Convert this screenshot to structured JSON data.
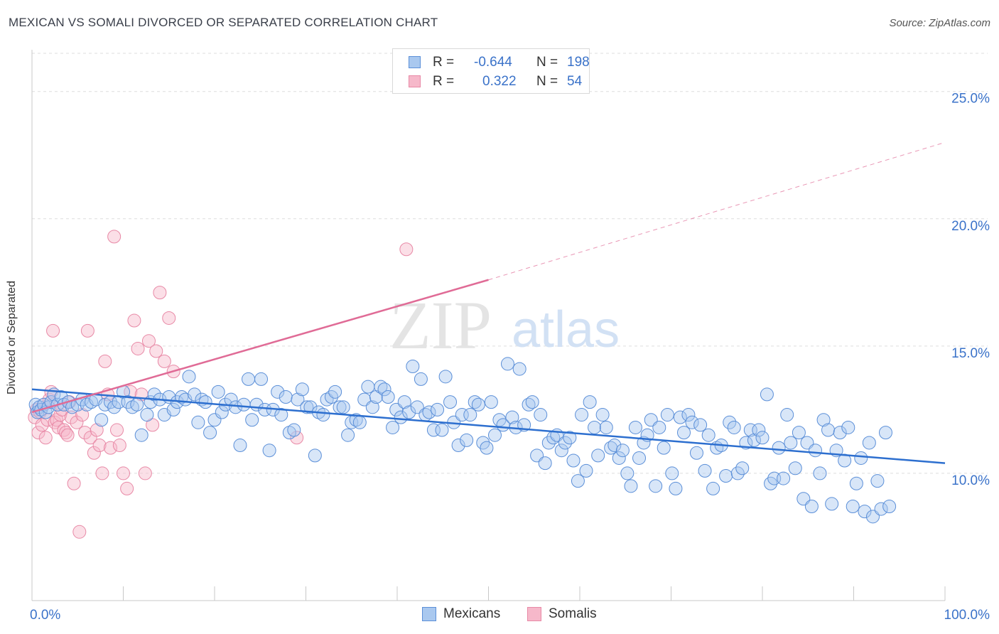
{
  "title": "MEXICAN VS SOMALI DIVORCED OR SEPARATED CORRELATION CHART",
  "source": "Source: ZipAtlas.com",
  "watermark": {
    "zip": "ZIP",
    "atlas": "atlas"
  },
  "legend": {
    "rows": [
      {
        "r_label": "R =",
        "r_value": "-0.644",
        "n_label": "N =",
        "n_value": "198"
      },
      {
        "r_label": "R =",
        "r_value": "0.322",
        "n_label": "N =",
        "n_value": "54"
      }
    ]
  },
  "colors": {
    "mexicans_fill": "#a9c8ef",
    "mexicans_stroke": "#5b8fd8",
    "mexicans_line": "#2d6fcf",
    "somalis_fill": "#f6b8ca",
    "somalis_stroke": "#e889a6",
    "somalis_line": "#e06b96",
    "tick_label": "#3a72c9",
    "grid": "#dddddd"
  },
  "chart_data": {
    "type": "scatter",
    "title": "MEXICAN VS SOMALI DIVORCED OR SEPARATED CORRELATION CHART",
    "xlabel": "",
    "ylabel": "Divorced or Separated",
    "xlim": [
      0,
      100
    ],
    "ylim": [
      5,
      26.5
    ],
    "x_tick_labels": [
      "0.0%",
      "100.0%"
    ],
    "y_ticks": [
      10,
      15,
      20,
      25
    ],
    "y_tick_labels": [
      "10.0%",
      "15.0%",
      "20.0%",
      "25.0%"
    ],
    "grid": true,
    "legend_position": "top-center",
    "series": [
      {
        "name": "Mexicans",
        "r": -0.644,
        "n": 198,
        "trend": {
          "x": [
            0,
            100
          ],
          "y": [
            13.3,
            10.4
          ]
        },
        "points": [
          [
            0.4,
            12.7
          ],
          [
            0.6,
            12.4
          ],
          [
            0.8,
            12.6
          ],
          [
            1.0,
            12.5
          ],
          [
            1.3,
            12.7
          ],
          [
            1.5,
            12.4
          ],
          [
            1.8,
            12.6
          ],
          [
            2.1,
            12.8
          ],
          [
            2.4,
            13.1
          ],
          [
            2.8,
            12.7
          ],
          [
            3.2,
            13.0
          ],
          [
            3.5,
            12.7
          ],
          [
            4.0,
            12.8
          ],
          [
            4.4,
            12.6
          ],
          [
            5.0,
            12.7
          ],
          [
            5.5,
            12.9
          ],
          [
            6.0,
            12.7
          ],
          [
            6.5,
            12.8
          ],
          [
            7.0,
            12.9
          ],
          [
            7.6,
            12.1
          ],
          [
            8.0,
            12.7
          ],
          [
            8.6,
            12.8
          ],
          [
            9.0,
            12.6
          ],
          [
            9.5,
            12.8
          ],
          [
            10.0,
            13.2
          ],
          [
            10.5,
            12.8
          ],
          [
            11.0,
            12.6
          ],
          [
            11.5,
            12.7
          ],
          [
            12.0,
            11.5
          ],
          [
            12.6,
            12.3
          ],
          [
            13.0,
            12.8
          ],
          [
            13.4,
            13.1
          ],
          [
            14.0,
            12.9
          ],
          [
            14.5,
            12.3
          ],
          [
            15.0,
            13.0
          ],
          [
            15.5,
            12.5
          ],
          [
            15.9,
            12.8
          ],
          [
            16.4,
            13.0
          ],
          [
            16.8,
            12.9
          ],
          [
            17.2,
            13.8
          ],
          [
            17.8,
            13.1
          ],
          [
            18.2,
            12.0
          ],
          [
            18.6,
            12.9
          ],
          [
            19.0,
            12.8
          ],
          [
            19.5,
            11.6
          ],
          [
            20.0,
            12.1
          ],
          [
            20.4,
            13.2
          ],
          [
            20.8,
            12.4
          ],
          [
            21.2,
            12.7
          ],
          [
            21.8,
            12.9
          ],
          [
            22.3,
            12.6
          ],
          [
            22.8,
            11.1
          ],
          [
            23.2,
            12.7
          ],
          [
            23.7,
            13.7
          ],
          [
            24.1,
            12.1
          ],
          [
            24.6,
            12.7
          ],
          [
            25.1,
            13.7
          ],
          [
            25.5,
            12.5
          ],
          [
            26.0,
            10.9
          ],
          [
            26.4,
            12.5
          ],
          [
            26.9,
            13.2
          ],
          [
            27.3,
            12.3
          ],
          [
            27.8,
            13.0
          ],
          [
            28.2,
            11.6
          ],
          [
            28.7,
            11.7
          ],
          [
            29.1,
            12.9
          ],
          [
            29.6,
            13.3
          ],
          [
            30.1,
            12.6
          ],
          [
            30.5,
            12.6
          ],
          [
            31.0,
            10.7
          ],
          [
            31.4,
            12.4
          ],
          [
            31.9,
            12.3
          ],
          [
            32.3,
            12.9
          ],
          [
            32.8,
            13.0
          ],
          [
            33.2,
            13.2
          ],
          [
            33.7,
            12.6
          ],
          [
            34.1,
            12.6
          ],
          [
            34.6,
            11.5
          ],
          [
            35.0,
            12.0
          ],
          [
            35.5,
            12.1
          ],
          [
            35.9,
            12.0
          ],
          [
            36.4,
            12.9
          ],
          [
            36.8,
            13.4
          ],
          [
            37.3,
            12.6
          ],
          [
            37.7,
            13.0
          ],
          [
            38.2,
            13.4
          ],
          [
            38.6,
            13.3
          ],
          [
            39.0,
            13.0
          ],
          [
            39.5,
            11.8
          ],
          [
            39.9,
            12.5
          ],
          [
            40.4,
            12.2
          ],
          [
            40.8,
            12.8
          ],
          [
            41.3,
            12.4
          ],
          [
            41.7,
            14.2
          ],
          [
            42.2,
            12.6
          ],
          [
            42.6,
            13.7
          ],
          [
            43.1,
            12.3
          ],
          [
            43.5,
            12.4
          ],
          [
            44.0,
            11.7
          ],
          [
            44.4,
            12.5
          ],
          [
            44.9,
            11.7
          ],
          [
            45.3,
            13.8
          ],
          [
            45.8,
            12.8
          ],
          [
            46.2,
            12.0
          ],
          [
            46.7,
            11.1
          ],
          [
            47.1,
            12.3
          ],
          [
            47.6,
            11.3
          ],
          [
            48.0,
            12.3
          ],
          [
            48.5,
            12.8
          ],
          [
            48.9,
            12.7
          ],
          [
            49.4,
            11.2
          ],
          [
            49.8,
            11.0
          ],
          [
            50.3,
            12.8
          ],
          [
            50.7,
            11.5
          ],
          [
            51.2,
            12.1
          ],
          [
            51.6,
            11.9
          ],
          [
            52.1,
            14.3
          ],
          [
            52.6,
            12.2
          ],
          [
            53.0,
            11.8
          ],
          [
            53.4,
            14.1
          ],
          [
            53.9,
            11.9
          ],
          [
            54.4,
            12.7
          ],
          [
            54.8,
            12.8
          ],
          [
            55.3,
            10.7
          ],
          [
            55.7,
            12.3
          ],
          [
            56.2,
            10.4
          ],
          [
            56.6,
            11.2
          ],
          [
            57.1,
            11.4
          ],
          [
            57.5,
            11.5
          ],
          [
            58.0,
            10.9
          ],
          [
            58.4,
            11.2
          ],
          [
            58.9,
            11.4
          ],
          [
            59.3,
            10.5
          ],
          [
            59.8,
            9.7
          ],
          [
            60.2,
            12.3
          ],
          [
            60.7,
            10.1
          ],
          [
            61.1,
            12.8
          ],
          [
            61.6,
            11.8
          ],
          [
            62.0,
            10.7
          ],
          [
            62.5,
            12.3
          ],
          [
            62.9,
            11.8
          ],
          [
            63.4,
            11.0
          ],
          [
            63.8,
            11.1
          ],
          [
            64.3,
            10.6
          ],
          [
            64.7,
            10.9
          ],
          [
            65.2,
            10.0
          ],
          [
            65.6,
            9.5
          ],
          [
            66.1,
            11.8
          ],
          [
            66.5,
            10.6
          ],
          [
            67.0,
            11.2
          ],
          [
            67.4,
            11.5
          ],
          [
            67.8,
            12.1
          ],
          [
            68.3,
            9.5
          ],
          [
            68.7,
            11.8
          ],
          [
            69.2,
            11.0
          ],
          [
            69.6,
            12.3
          ],
          [
            70.1,
            10.0
          ],
          [
            70.5,
            9.4
          ],
          [
            71.0,
            12.2
          ],
          [
            71.4,
            11.6
          ],
          [
            71.9,
            12.3
          ],
          [
            72.3,
            12.0
          ],
          [
            72.8,
            10.8
          ],
          [
            73.2,
            11.9
          ],
          [
            73.7,
            10.1
          ],
          [
            74.1,
            11.5
          ],
          [
            74.6,
            9.4
          ],
          [
            75.0,
            11.0
          ],
          [
            75.5,
            11.1
          ],
          [
            76.0,
            9.9
          ],
          [
            76.4,
            12.0
          ],
          [
            76.9,
            11.8
          ],
          [
            77.3,
            10.0
          ],
          [
            77.8,
            10.2
          ],
          [
            78.2,
            11.2
          ],
          [
            78.7,
            11.7
          ],
          [
            79.1,
            11.3
          ],
          [
            79.6,
            11.7
          ],
          [
            80.0,
            11.4
          ],
          [
            80.5,
            13.1
          ],
          [
            80.9,
            9.6
          ],
          [
            81.3,
            9.8
          ],
          [
            81.8,
            11.0
          ],
          [
            82.3,
            9.8
          ],
          [
            82.7,
            12.3
          ],
          [
            83.1,
            11.2
          ],
          [
            83.6,
            10.2
          ],
          [
            84.0,
            11.6
          ],
          [
            84.5,
            9.0
          ],
          [
            84.9,
            11.2
          ],
          [
            85.4,
            8.7
          ],
          [
            85.8,
            10.9
          ],
          [
            86.3,
            10.0
          ],
          [
            86.7,
            12.1
          ],
          [
            87.2,
            11.7
          ],
          [
            87.6,
            8.8
          ],
          [
            88.1,
            10.9
          ],
          [
            88.5,
            11.6
          ],
          [
            89.0,
            10.5
          ],
          [
            89.4,
            11.8
          ],
          [
            89.9,
            8.7
          ],
          [
            90.3,
            9.6
          ],
          [
            90.8,
            10.6
          ],
          [
            91.2,
            8.5
          ],
          [
            91.7,
            11.2
          ],
          [
            92.1,
            8.3
          ],
          [
            92.6,
            9.7
          ],
          [
            93.0,
            8.6
          ],
          [
            93.5,
            11.6
          ],
          [
            93.9,
            8.7
          ]
        ]
      },
      {
        "name": "Somalis",
        "r": 0.322,
        "n": 54,
        "trend": {
          "x": [
            0,
            50
          ],
          "y": [
            12.4,
            17.6
          ]
        },
        "trend_extension": {
          "x": [
            50,
            100
          ],
          "y": [
            17.6,
            23.0
          ]
        },
        "points": [
          [
            0.3,
            12.2
          ],
          [
            0.5,
            12.5
          ],
          [
            0.7,
            11.6
          ],
          [
            0.9,
            12.4
          ],
          [
            1.1,
            11.9
          ],
          [
            1.3,
            12.7
          ],
          [
            1.5,
            11.4
          ],
          [
            1.7,
            12.1
          ],
          [
            1.9,
            12.9
          ],
          [
            2.1,
            13.2
          ],
          [
            2.3,
            15.6
          ],
          [
            2.5,
            12.0
          ],
          [
            2.7,
            12.1
          ],
          [
            2.9,
            11.8
          ],
          [
            3.1,
            12.3
          ],
          [
            3.3,
            12.5
          ],
          [
            3.5,
            11.7
          ],
          [
            3.7,
            11.6
          ],
          [
            3.9,
            11.5
          ],
          [
            4.1,
            12.8
          ],
          [
            4.3,
            12.2
          ],
          [
            4.6,
            9.6
          ],
          [
            4.9,
            12.0
          ],
          [
            5.2,
            7.7
          ],
          [
            5.5,
            12.3
          ],
          [
            5.8,
            11.6
          ],
          [
            6.1,
            15.6
          ],
          [
            6.4,
            11.4
          ],
          [
            6.8,
            10.8
          ],
          [
            7.1,
            11.7
          ],
          [
            7.4,
            11.1
          ],
          [
            7.7,
            10.0
          ],
          [
            8.0,
            14.4
          ],
          [
            8.3,
            13.1
          ],
          [
            8.6,
            11.0
          ],
          [
            9.0,
            19.3
          ],
          [
            9.3,
            11.7
          ],
          [
            9.6,
            11.1
          ],
          [
            10.0,
            10.0
          ],
          [
            10.4,
            9.4
          ],
          [
            10.8,
            13.2
          ],
          [
            11.2,
            16.0
          ],
          [
            11.6,
            14.9
          ],
          [
            12.0,
            13.1
          ],
          [
            12.4,
            10.0
          ],
          [
            12.8,
            15.2
          ],
          [
            13.2,
            11.9
          ],
          [
            13.6,
            14.8
          ],
          [
            14.0,
            17.1
          ],
          [
            14.5,
            14.4
          ],
          [
            15.0,
            16.1
          ],
          [
            15.5,
            14.0
          ],
          [
            29.0,
            11.4
          ],
          [
            41.0,
            18.8
          ]
        ]
      }
    ],
    "bottom_legend": [
      {
        "label": "Mexicans"
      },
      {
        "label": "Somalis"
      }
    ]
  }
}
